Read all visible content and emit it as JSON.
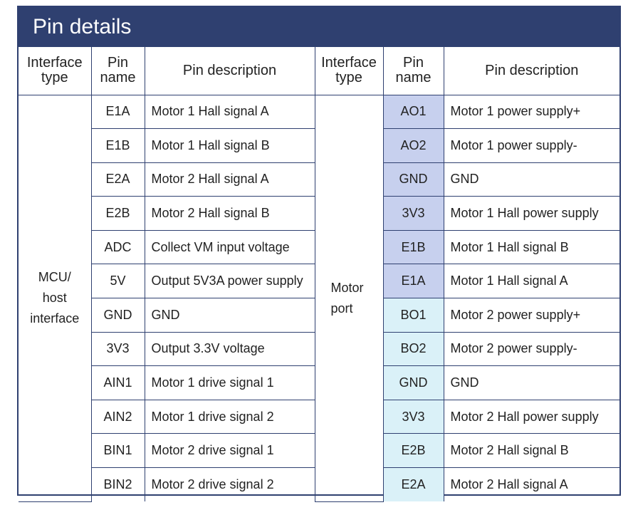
{
  "title": "Pin details",
  "headers": {
    "left": {
      "interface_type": [
        "Interface",
        "type"
      ],
      "pin_name": [
        "Pin",
        "name"
      ],
      "pin_description": "Pin description"
    },
    "right": {
      "interface_type": [
        "Interface",
        "type"
      ],
      "pin_name": [
        "Pin",
        "name"
      ],
      "pin_description": "Pin description"
    }
  },
  "left_group": [
    "MCU/",
    "host",
    "interface"
  ],
  "right_group": [
    "Motor",
    "port"
  ],
  "rows": [
    {
      "left_pin": "E1A",
      "left_desc": "Motor 1 Hall signal A",
      "right_pin": "AO1",
      "right_desc": "Motor 1 power supply+"
    },
    {
      "left_pin": "E1B",
      "left_desc": "Motor 1 Hall signal B",
      "right_pin": "AO2",
      "right_desc": "Motor 1 power supply-"
    },
    {
      "left_pin": "E2A",
      "left_desc": "Motor 2 Hall signal A",
      "right_pin": "GND",
      "right_desc": "GND"
    },
    {
      "left_pin": "E2B",
      "left_desc": "Motor 2 Hall signal B",
      "right_pin": "3V3",
      "right_desc": "Motor 1 Hall power supply"
    },
    {
      "left_pin": "ADC",
      "left_desc": "Collect VM input voltage",
      "right_pin": "E1B",
      "right_desc": "Motor 1 Hall signal B"
    },
    {
      "left_pin": "5V",
      "left_desc": "Output 5V3A power supply",
      "right_pin": "E1A",
      "right_desc": "Motor 1 Hall signal A"
    },
    {
      "left_pin": "GND",
      "left_desc": "GND",
      "right_pin": "BO1",
      "right_desc": "Motor 2 power supply+"
    },
    {
      "left_pin": "3V3",
      "left_desc": "Output 3.3V voltage",
      "right_pin": "BO2",
      "right_desc": "Motor 2 power supply-"
    },
    {
      "left_pin": "AIN1",
      "left_desc": "Motor 1 drive signal 1",
      "right_pin": "GND",
      "right_desc": "GND"
    },
    {
      "left_pin": "AIN2",
      "left_desc": "Motor 1 drive signal 2",
      "right_pin": "3V3",
      "right_desc": "Motor 2 Hall power supply"
    },
    {
      "left_pin": "BIN1",
      "left_desc": "Motor 2 drive signal 1",
      "right_pin": "E2B",
      "right_desc": "Motor 2 Hall signal B"
    },
    {
      "left_pin": "BIN2",
      "left_desc": "Motor 2 drive signal 2",
      "right_pin": "E2A",
      "right_desc": "Motor 2 Hall signal A"
    }
  ],
  "colors": {
    "header_bar": "#2f4070",
    "motor_a_pins": "#c7d0ee",
    "motor_b_pins": "#daf1f8"
  }
}
